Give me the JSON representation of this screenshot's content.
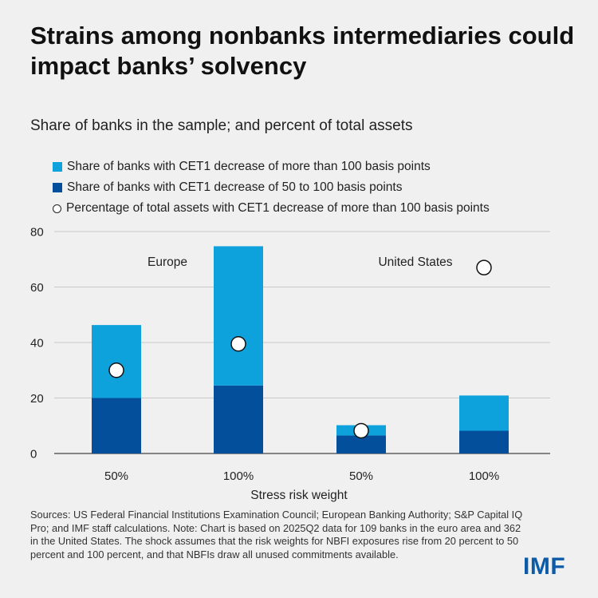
{
  "title": "Strains among nonbanks intermediaries could impact banks’ solvency",
  "subtitle": "Share of banks in the sample; and percent of total assets",
  "legend": [
    "Share of banks with CET1 decrease of more than 100 basis points",
    "Share of banks with CET1 decrease of 50 to 100 basis points",
    "Percentage of total assets with CET1 decrease of more than 100 basis points"
  ],
  "chart_data": {
    "type": "bar",
    "stacked": true,
    "categories": [
      "50%",
      "100%",
      "50%",
      "100%"
    ],
    "groups": [
      {
        "label": "Europe",
        "categories": [
          0,
          1
        ]
      },
      {
        "label": "United States",
        "categories": [
          2,
          3
        ]
      }
    ],
    "xlabel": "Stress risk weight",
    "ylabel": "",
    "ylim": [
      0,
      80
    ],
    "yticks": [
      0,
      20,
      40,
      60,
      80
    ],
    "grid": true,
    "legend_position": "top-left",
    "series": [
      {
        "name": "Share of banks with CET1 decrease of 50 to 100 basis points",
        "kind": "bar",
        "color": "#044f9b",
        "values": [
          20,
          24.5,
          6.5,
          8.2
        ]
      },
      {
        "name": "Share of banks with CET1 decrease of more than 100 basis points",
        "kind": "bar",
        "color": "#0ea2dd",
        "values": [
          26.3,
          50.2,
          3.7,
          12.7
        ]
      },
      {
        "name": "Percentage of total assets with CET1 decrease of more than 100 basis points",
        "kind": "marker",
        "values": [
          30,
          39.5,
          8.2,
          67
        ]
      }
    ]
  },
  "sources": "Sources: US Federal Financial Institutions Examination Council; European Banking Authority; S&P Capital IQ Pro; and IMF staff calculations. Note: Chart is based on 2025Q2 data for 109 banks in the euro area and 362 in the United States. The shock assumes that the risk weights for NBFI exposures rise from 20 percent to 50 percent and 100 percent, and that NBFIs draw all unused commitments available.",
  "logo": "IMF"
}
